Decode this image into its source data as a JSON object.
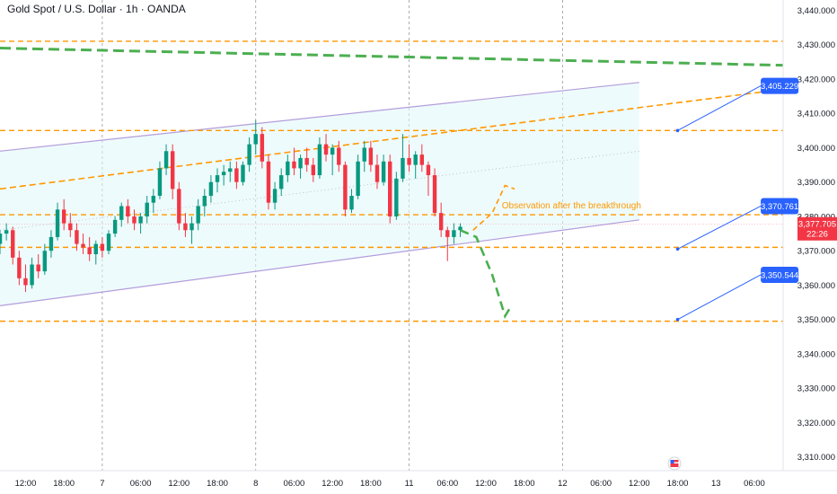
{
  "header": {
    "title": "Gold Spot / U.S. Dollar · 1h · OANDA"
  },
  "colors": {
    "up": "#089981",
    "down": "#f23645",
    "level": "#ff9800",
    "trend": "#4caf50",
    "channel_line": "#b39ddb",
    "channel_fill": "#e0f7fa",
    "badge": "#2962ff",
    "price_badge": "#f23645",
    "grid": "#f0f3fa",
    "axis_text": "#131722"
  },
  "chart_data": {
    "type": "candlestick",
    "title": "Gold Spot / U.S. Dollar · 1h · OANDA",
    "ylim": [
      3306,
      3443
    ],
    "y_ticks": [
      "3,440.000",
      "3,430.000",
      "3,420.000",
      "3,410.000",
      "3,400.000",
      "3,390.000",
      "3,380.000",
      "3,370.000",
      "3,360.000",
      "3,350.000",
      "3,340.000",
      "3,330.000",
      "3,320.000",
      "3,310.000"
    ],
    "y_tick_values": [
      3440,
      3430,
      3420,
      3410,
      3400,
      3390,
      3380,
      3370,
      3360,
      3350,
      3340,
      3330,
      3320,
      3310
    ],
    "x_ticks": [
      "12:00",
      "18:00",
      "7",
      "06:00",
      "12:00",
      "18:00",
      "8",
      "06:00",
      "12:00",
      "18:00",
      "11",
      "06:00",
      "12:00",
      "18:00",
      "12",
      "06:00",
      "12:00",
      "18:00",
      "13",
      "06:00"
    ],
    "x_tick_hours": [
      -60,
      -54,
      -48,
      -42,
      -36,
      -30,
      -24,
      -18,
      -12,
      -6,
      0,
      6,
      12,
      18,
      24,
      30,
      36,
      42,
      48,
      54
    ],
    "day_separator_hours": [
      -48,
      -24,
      0,
      24
    ],
    "x_range_hours": [
      -64,
      58.5
    ],
    "candles": [
      [
        -64,
        3372,
        3376,
        3369,
        3375
      ],
      [
        -63,
        3375,
        3378,
        3373,
        3376
      ],
      [
        -62,
        3376,
        3377,
        3366,
        3368
      ],
      [
        -61,
        3368,
        3370,
        3360,
        3362
      ],
      [
        -60,
        3362,
        3366,
        3358,
        3360
      ],
      [
        -59,
        3360,
        3368,
        3359,
        3366
      ],
      [
        -58,
        3366,
        3369,
        3362,
        3364
      ],
      [
        -57,
        3364,
        3372,
        3363,
        3370
      ],
      [
        -56,
        3370,
        3376,
        3368,
        3374
      ],
      [
        -55,
        3374,
        3384,
        3373,
        3382
      ],
      [
        -54,
        3382,
        3385,
        3376,
        3378
      ],
      [
        -53,
        3378,
        3381,
        3374,
        3376
      ],
      [
        -52,
        3376,
        3378,
        3370,
        3372
      ],
      [
        -51,
        3372,
        3375,
        3369,
        3371
      ],
      [
        -50,
        3371,
        3374,
        3367,
        3369
      ],
      [
        -49,
        3369,
        3373,
        3366,
        3372
      ],
      [
        -48,
        3372,
        3374,
        3368,
        3370
      ],
      [
        -47,
        3370,
        3376,
        3369,
        3375
      ],
      [
        -46,
        3375,
        3380,
        3374,
        3379
      ],
      [
        -45,
        3379,
        3384,
        3377,
        3383
      ],
      [
        -44,
        3383,
        3385,
        3378,
        3380
      ],
      [
        -43,
        3380,
        3382,
        3376,
        3378
      ],
      [
        -42,
        3378,
        3381,
        3375,
        3380
      ],
      [
        -41,
        3380,
        3386,
        3378,
        3384
      ],
      [
        -40,
        3384,
        3388,
        3381,
        3386
      ],
      [
        -39,
        3386,
        3396,
        3385,
        3394
      ],
      [
        -38,
        3394,
        3401,
        3392,
        3399
      ],
      [
        -37,
        3399,
        3401,
        3385,
        3388
      ],
      [
        -36,
        3388,
        3390,
        3376,
        3378
      ],
      [
        -35,
        3378,
        3381,
        3374,
        3376
      ],
      [
        -34,
        3376,
        3380,
        3372,
        3378
      ],
      [
        -33,
        3378,
        3385,
        3376,
        3383
      ],
      [
        -32,
        3383,
        3388,
        3380,
        3386
      ],
      [
        -31,
        3386,
        3392,
        3384,
        3390
      ],
      [
        -30,
        3390,
        3394,
        3387,
        3392
      ],
      [
        -29,
        3392,
        3395,
        3389,
        3393
      ],
      [
        -28,
        3393,
        3396,
        3390,
        3394
      ],
      [
        -27,
        3394,
        3396,
        3388,
        3390
      ],
      [
        -26,
        3390,
        3396,
        3389,
        3395
      ],
      [
        -25,
        3395,
        3403,
        3393,
        3401
      ],
      [
        -24,
        3401,
        3408,
        3398,
        3404
      ],
      [
        -23,
        3404,
        3406,
        3394,
        3396
      ],
      [
        -22,
        3396,
        3398,
        3382,
        3384
      ],
      [
        -21,
        3384,
        3390,
        3382,
        3388
      ],
      [
        -20,
        3388,
        3394,
        3386,
        3392
      ],
      [
        -19,
        3392,
        3398,
        3390,
        3396
      ],
      [
        -18,
        3396,
        3400,
        3392,
        3394
      ],
      [
        -17,
        3394,
        3398,
        3391,
        3397
      ],
      [
        -16,
        3397,
        3400,
        3393,
        3395
      ],
      [
        -15,
        3395,
        3397,
        3390,
        3392
      ],
      [
        -14,
        3392,
        3403,
        3391,
        3401
      ],
      [
        -13,
        3401,
        3404,
        3396,
        3398
      ],
      [
        -12,
        3398,
        3401,
        3392,
        3400
      ],
      [
        -11,
        3400,
        3402,
        3393,
        3395
      ],
      [
        -10,
        3395,
        3396,
        3380,
        3382
      ],
      [
        -9,
        3382,
        3388,
        3381,
        3386
      ],
      [
        -8,
        3386,
        3398,
        3385,
        3396
      ],
      [
        -7,
        3396,
        3402,
        3393,
        3400
      ],
      [
        -6,
        3400,
        3402,
        3393,
        3395
      ],
      [
        -5,
        3395,
        3398,
        3388,
        3390
      ],
      [
        -4,
        3390,
        3398,
        3389,
        3396
      ],
      [
        -3,
        3396,
        3398,
        3378,
        3380
      ],
      [
        -2,
        3380,
        3393,
        3379,
        3391
      ],
      [
        -1,
        3391,
        3404,
        3390,
        3397
      ],
      [
        0,
        3397,
        3401,
        3393,
        3395
      ],
      [
        1,
        3395,
        3399,
        3391,
        3398
      ],
      [
        2,
        3398,
        3401,
        3393,
        3395
      ],
      [
        3,
        3395,
        3396,
        3386,
        3392
      ],
      [
        4,
        3392,
        3394,
        3380,
        3381
      ],
      [
        5,
        3381,
        3384,
        3374,
        3376
      ],
      [
        6,
        3376,
        3377,
        3367,
        3374
      ],
      [
        7,
        3374,
        3378,
        3372,
        3376
      ],
      [
        8,
        3376,
        3378,
        3374,
        3377
      ]
    ],
    "current_price": "3,377.705",
    "countdown": "22:26",
    "levels": [
      {
        "value": 3431,
        "color": "#ff9800"
      },
      {
        "value": 3405,
        "color": "#ff9800"
      },
      {
        "value": 3380.5,
        "color": "#ff9800"
      },
      {
        "value": 3371,
        "color": "#ff9800"
      },
      {
        "value": 3349.5,
        "color": "#ff9800"
      }
    ],
    "channel": {
      "upper": [
        [
          -64,
          3399
        ],
        [
          36,
          3419
        ]
      ],
      "lower": [
        [
          -64,
          3354
        ],
        [
          36,
          3379
        ]
      ]
    },
    "channel_midline": [
      [
        -64,
        3376
      ],
      [
        36,
        3399
      ]
    ],
    "rising_trendline": [
      [
        -64,
        3388
      ],
      [
        58.5,
        3417
      ]
    ],
    "falling_trendline": [
      [
        -64,
        3429
      ],
      [
        58.5,
        3424
      ]
    ],
    "target_labels": [
      {
        "value": "3,405.229",
        "from": [
          42,
          3405
        ],
        "to": [
          55,
          3418
        ]
      },
      {
        "value": "3,370.761",
        "from": [
          42,
          3370.5
        ],
        "to": [
          55,
          3383
        ]
      },
      {
        "value": "3,350.544",
        "from": [
          42,
          3350
        ],
        "to": [
          55,
          3363
        ]
      }
    ],
    "projection_up": [
      [
        10,
        3376
      ],
      [
        13,
        3381
      ],
      [
        15,
        3389
      ],
      [
        16.5,
        3388
      ]
    ],
    "projection_down": [
      [
        8,
        3376
      ],
      [
        10.5,
        3374
      ],
      [
        13,
        3363
      ],
      [
        15,
        3351
      ],
      [
        16,
        3354
      ]
    ],
    "annotation": {
      "text": "Observation after the breakthrough",
      "at": [
        14.5,
        3381
      ]
    }
  }
}
